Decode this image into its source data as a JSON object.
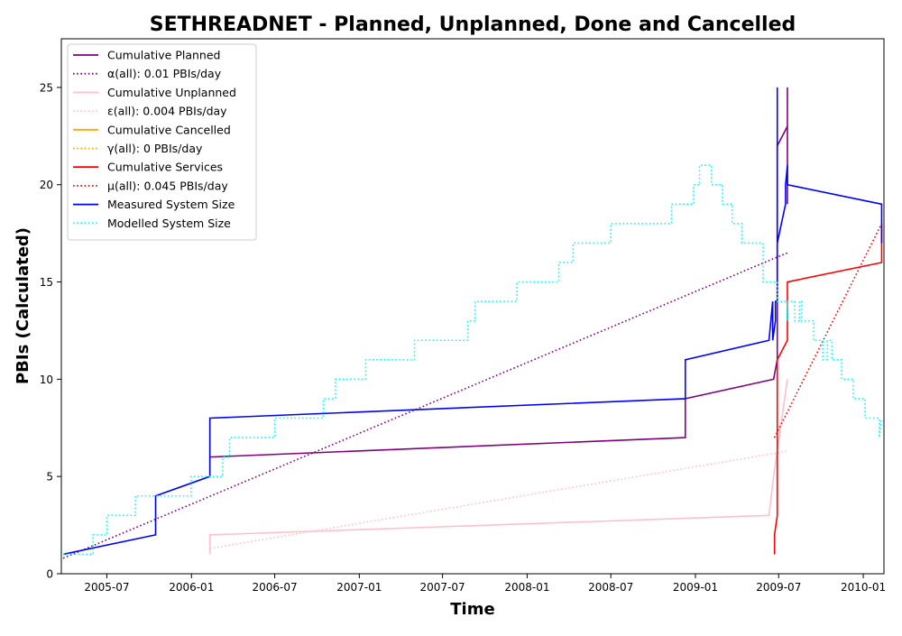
{
  "chart_data": {
    "type": "line",
    "title": "SETHREADNET - Planned, Unplanned, Done  and Cancelled",
    "xlabel": "Time",
    "ylabel": "PBIs (Calculated)",
    "xlim": [
      "2005-03-24",
      "2010-02-15"
    ],
    "ylim": [
      0,
      27.5
    ],
    "x_ticks": [
      "2005-07",
      "2006-01",
      "2006-07",
      "2007-01",
      "2007-07",
      "2008-01",
      "2008-07",
      "2009-01",
      "2009-07",
      "2010-01"
    ],
    "y_ticks": [
      0,
      5,
      10,
      15,
      20,
      25
    ],
    "grid": false,
    "legend_position": "top-left",
    "series": [
      {
        "name": "Cumulative Planned",
        "color": "#800080",
        "style": "solid",
        "points": [
          [
            "2006-02-10",
            6
          ],
          [
            "2008-12-10",
            7
          ],
          [
            "2008-12-10",
            9
          ],
          [
            "2009-06-20",
            10
          ],
          [
            "2009-06-28",
            11
          ],
          [
            "2009-06-28",
            22
          ],
          [
            "2009-07-20",
            23
          ],
          [
            "2009-07-20",
            25
          ],
          [
            "2009-07-20",
            19
          ]
        ]
      },
      {
        "name": "α(all): 0.01 PBIs/day",
        "color": "#800080",
        "style": "dotted",
        "points": [
          [
            "2005-03-28",
            0.8
          ],
          [
            "2009-07-20",
            16.5
          ]
        ]
      },
      {
        "name": "Cumulative Unplanned",
        "color": "#ffc0cb",
        "style": "solid",
        "points": [
          [
            "2006-02-10",
            1
          ],
          [
            "2006-02-10",
            2
          ],
          [
            "2009-06-10",
            3
          ],
          [
            "2009-06-20",
            5
          ],
          [
            "2009-07-20",
            10
          ]
        ]
      },
      {
        "name": "ε(all): 0.004 PBIs/day",
        "color": "#ffc0cb",
        "style": "dotted",
        "points": [
          [
            "2006-02-10",
            1.3
          ],
          [
            "2009-07-20",
            6.3
          ]
        ]
      },
      {
        "name": "Cumulative Cancelled",
        "color": "#ffa500",
        "style": "solid",
        "points": []
      },
      {
        "name": "γ(all): 0 PBIs/day",
        "color": "#ffa500",
        "style": "dotted",
        "points": []
      },
      {
        "name": "Cumulative Services",
        "color": "#ff0000",
        "style": "solid",
        "points": [
          [
            "2009-06-22",
            1
          ],
          [
            "2009-06-22",
            2
          ],
          [
            "2009-06-28",
            3
          ],
          [
            "2009-06-28",
            11
          ],
          [
            "2009-07-20",
            12
          ],
          [
            "2009-07-20",
            15
          ],
          [
            "2010-02-10",
            16
          ],
          [
            "2010-02-10",
            18
          ]
        ]
      },
      {
        "name": "μ(all): 0.045 PBIs/day",
        "color": "#ff0000",
        "style": "dotted",
        "points": [
          [
            "2009-06-22",
            7
          ],
          [
            "2010-02-10",
            18
          ]
        ]
      },
      {
        "name": "Measured System Size",
        "color": "#0000ff",
        "style": "solid",
        "points": [
          [
            "2005-03-28",
            1
          ],
          [
            "2005-10-15",
            2
          ],
          [
            "2005-10-15",
            4
          ],
          [
            "2006-02-10",
            5
          ],
          [
            "2006-02-10",
            8
          ],
          [
            "2008-12-10",
            9
          ],
          [
            "2008-12-10",
            11
          ],
          [
            "2009-06-10",
            12
          ],
          [
            "2009-06-18",
            14
          ],
          [
            "2009-06-18",
            12
          ],
          [
            "2009-06-24",
            13
          ],
          [
            "2009-06-24",
            14
          ],
          [
            "2009-06-28",
            14
          ],
          [
            "2009-06-28",
            25
          ],
          [
            "2009-06-28",
            17
          ],
          [
            "2009-07-16",
            19
          ],
          [
            "2009-07-16",
            20
          ],
          [
            "2009-07-20",
            21
          ],
          [
            "2009-07-20",
            20
          ],
          [
            "2010-02-10",
            19
          ],
          [
            "2010-02-10",
            17
          ]
        ]
      },
      {
        "name": "Modelled System Size",
        "color": "#00ffff",
        "style": "dotted",
        "points": [
          [
            "2005-03-28",
            1
          ],
          [
            "2005-06-01",
            1
          ],
          [
            "2005-06-01",
            2
          ],
          [
            "2005-07-01",
            2
          ],
          [
            "2005-07-01",
            3
          ],
          [
            "2005-09-01",
            3
          ],
          [
            "2005-09-01",
            4
          ],
          [
            "2005-12-31",
            4
          ],
          [
            "2005-12-31",
            5
          ],
          [
            "2006-03-10",
            5
          ],
          [
            "2006-03-10",
            6
          ],
          [
            "2006-03-25",
            6
          ],
          [
            "2006-03-25",
            7
          ],
          [
            "2006-07-01",
            7
          ],
          [
            "2006-07-01",
            8
          ],
          [
            "2006-10-15",
            8
          ],
          [
            "2006-10-15",
            9
          ],
          [
            "2006-11-10",
            9
          ],
          [
            "2006-11-10",
            10
          ],
          [
            "2007-01-15",
            10
          ],
          [
            "2007-01-15",
            11
          ],
          [
            "2007-05-01",
            11
          ],
          [
            "2007-05-01",
            12
          ],
          [
            "2007-08-25",
            12
          ],
          [
            "2007-08-25",
            13
          ],
          [
            "2007-09-10",
            13
          ],
          [
            "2007-09-10",
            14
          ],
          [
            "2007-12-10",
            14
          ],
          [
            "2007-12-10",
            15
          ],
          [
            "2008-03-10",
            15
          ],
          [
            "2008-03-10",
            16
          ],
          [
            "2008-04-10",
            16
          ],
          [
            "2008-04-10",
            17
          ],
          [
            "2008-07-01",
            17
          ],
          [
            "2008-07-01",
            18
          ],
          [
            "2008-11-10",
            18
          ],
          [
            "2008-11-10",
            19
          ],
          [
            "2008-12-28",
            19
          ],
          [
            "2008-12-28",
            20
          ],
          [
            "2009-01-10",
            20
          ],
          [
            "2009-01-10",
            21
          ],
          [
            "2009-02-05",
            21
          ],
          [
            "2009-02-05",
            20
          ],
          [
            "2009-03-01",
            20
          ],
          [
            "2009-03-01",
            19
          ],
          [
            "2009-03-22",
            19
          ],
          [
            "2009-03-22",
            18
          ],
          [
            "2009-04-12",
            18
          ],
          [
            "2009-04-12",
            17
          ],
          [
            "2009-05-28",
            17
          ],
          [
            "2009-05-28",
            15
          ],
          [
            "2009-06-28",
            15
          ],
          [
            "2009-06-28",
            14
          ],
          [
            "2009-07-20",
            14
          ],
          [
            "2009-07-20",
            13
          ],
          [
            "2009-07-20",
            14
          ],
          [
            "2009-08-05",
            14
          ],
          [
            "2009-08-05",
            13
          ],
          [
            "2009-08-15",
            13
          ],
          [
            "2009-08-15",
            14
          ],
          [
            "2009-08-20",
            14
          ],
          [
            "2009-08-20",
            13
          ],
          [
            "2009-09-15",
            13
          ],
          [
            "2009-09-15",
            12
          ],
          [
            "2009-10-05",
            12
          ],
          [
            "2009-10-05",
            11
          ],
          [
            "2009-10-15",
            11
          ],
          [
            "2009-10-15",
            12
          ],
          [
            "2009-10-25",
            12
          ],
          [
            "2009-10-25",
            11
          ],
          [
            "2009-11-15",
            11
          ],
          [
            "2009-11-15",
            10
          ],
          [
            "2009-12-10",
            10
          ],
          [
            "2009-12-10",
            9
          ],
          [
            "2010-01-05",
            9
          ],
          [
            "2010-01-05",
            8
          ],
          [
            "2010-02-05",
            8
          ],
          [
            "2010-02-05",
            7
          ],
          [
            "2010-02-10",
            8
          ]
        ]
      }
    ]
  }
}
